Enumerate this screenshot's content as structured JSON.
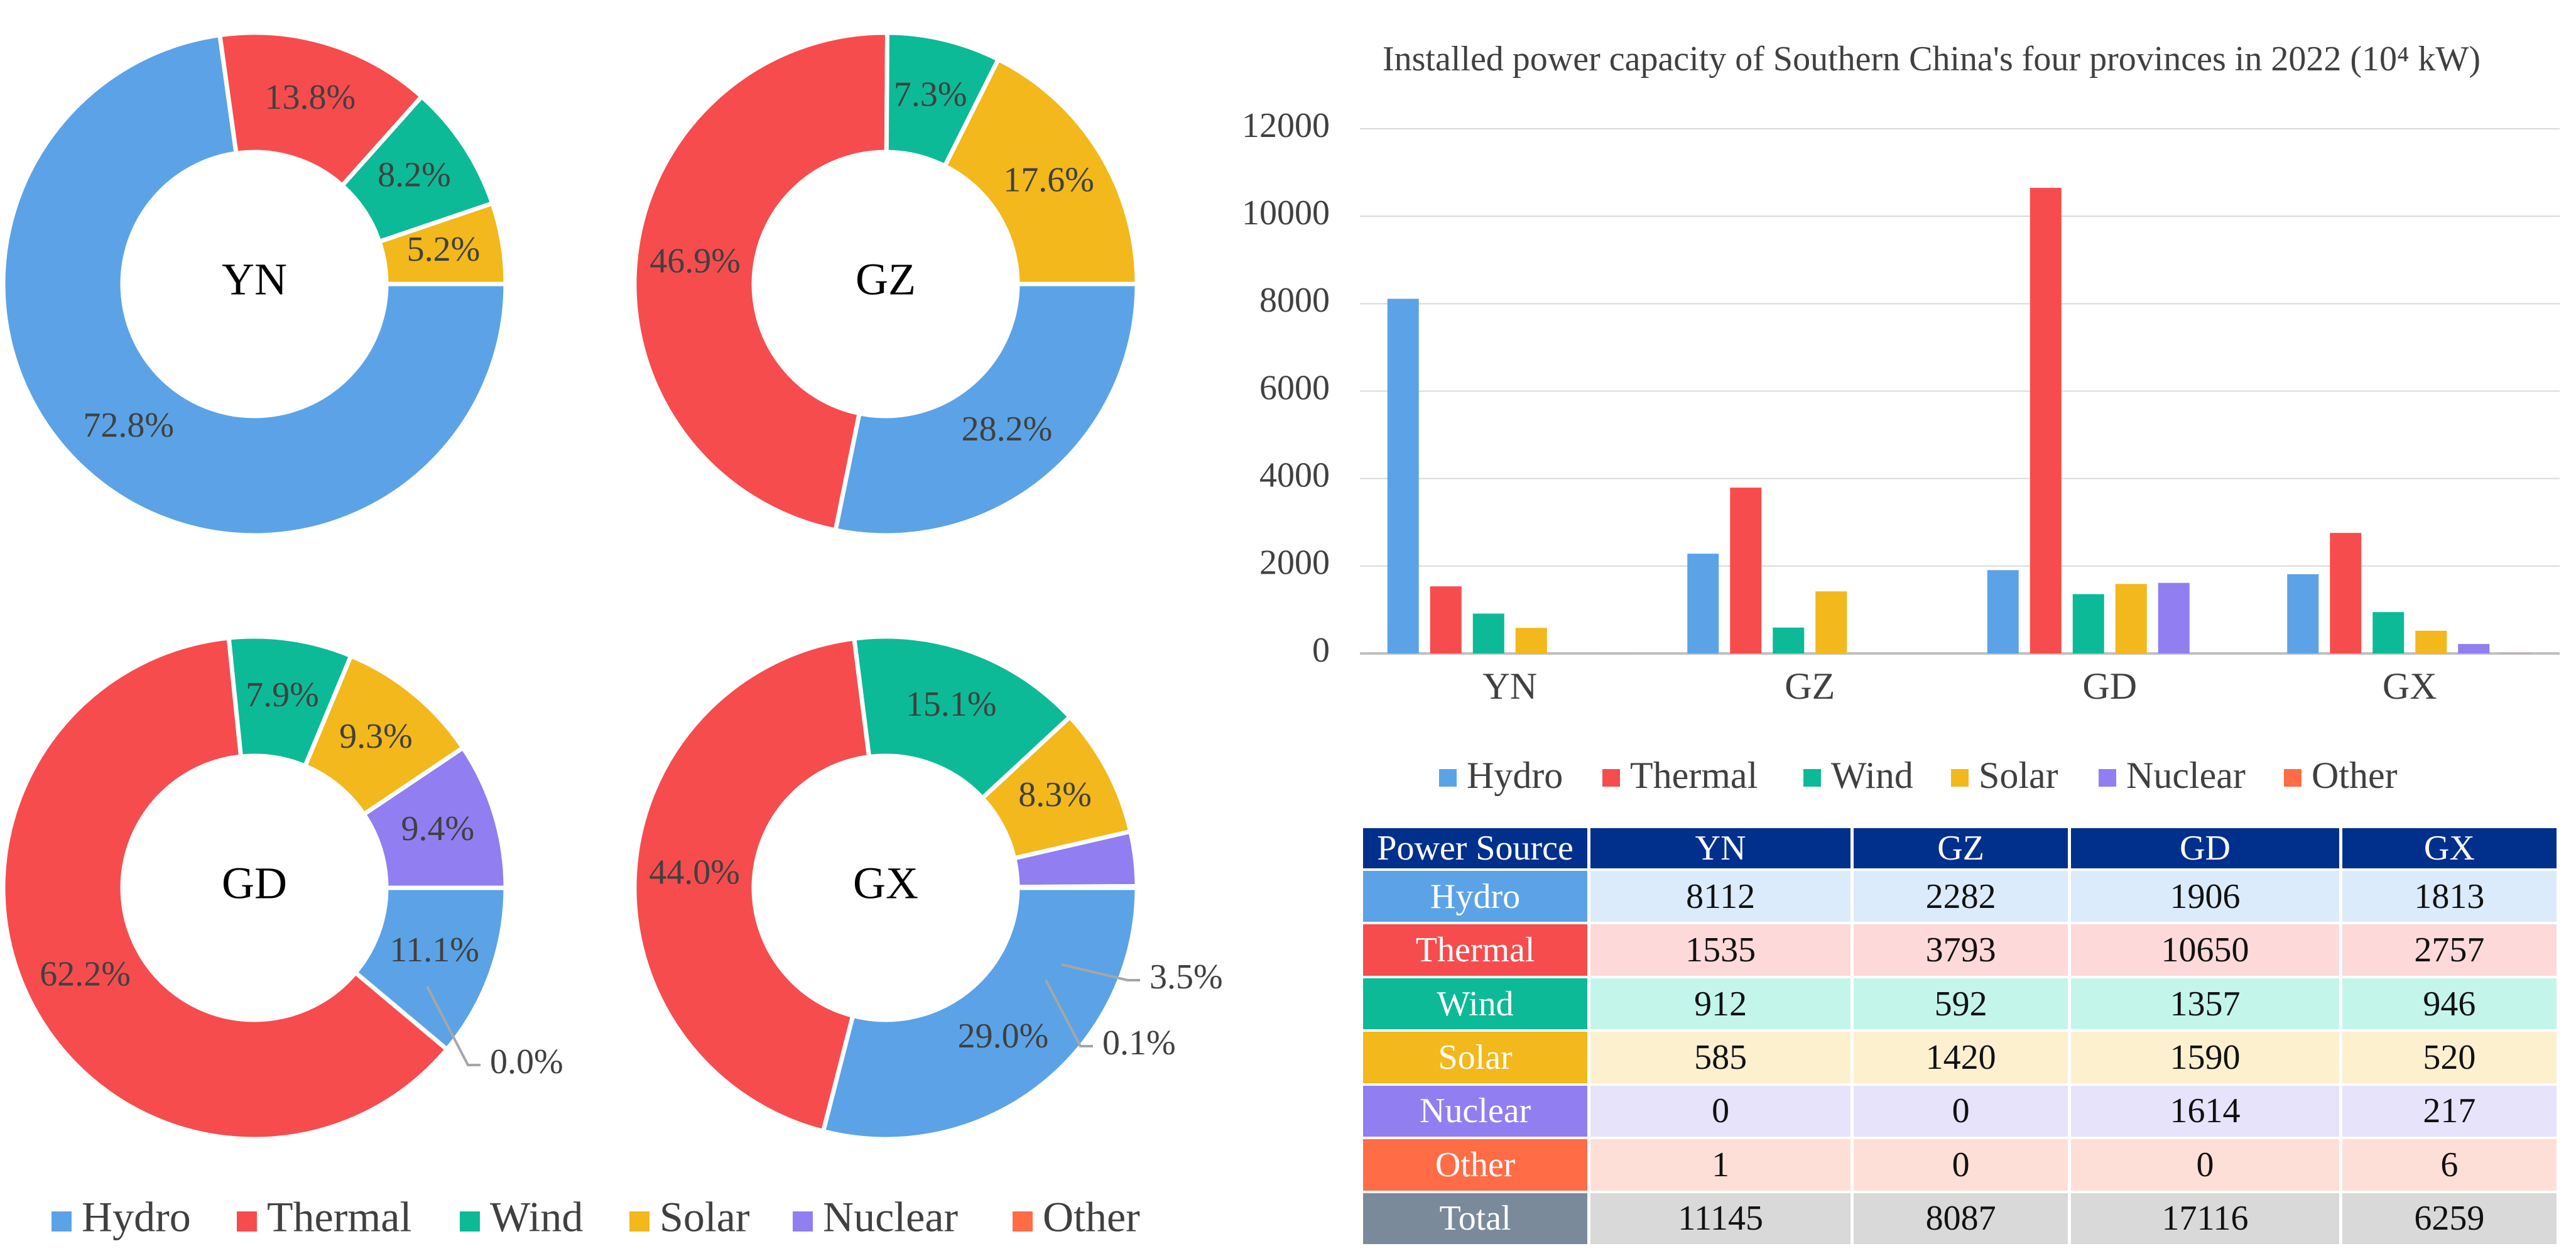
{
  "colors": {
    "Hydro": "#5ba3e6",
    "Thermal": "#f64c4e",
    "Wind": "#0cba97",
    "Solar": "#f2b81c",
    "Nuclear": "#917ef1",
    "Other": "#ff6c46",
    "Total": "#7a8a9a",
    "header": "#00308c",
    "cell_tints": {
      "Hydro": "#dcebfb",
      "Thermal": "#fdd9d9",
      "Wind": "#c3f5eb",
      "Solar": "#fdf0cf",
      "Nuclear": "#e6e3fb",
      "Other": "#fedfd7",
      "Total": "#d9d9d9"
    }
  },
  "chart_data": [
    {
      "type": "pie",
      "donut": true,
      "center_label": "YN",
      "slices": [
        {
          "name": "Hydro",
          "value": 72.8,
          "label": "72.8%"
        },
        {
          "name": "Thermal",
          "value": 13.8,
          "label": "13.8%"
        },
        {
          "name": "Wind",
          "value": 8.2,
          "label": "8.2%"
        },
        {
          "name": "Solar",
          "value": 5.2,
          "label": "5.2%"
        },
        {
          "name": "Nuclear",
          "value": 0,
          "label": ""
        },
        {
          "name": "Other",
          "value": 0,
          "label": ""
        }
      ]
    },
    {
      "type": "pie",
      "donut": true,
      "center_label": "GZ",
      "slices": [
        {
          "name": "Hydro",
          "value": 28.2,
          "label": "28.2%"
        },
        {
          "name": "Thermal",
          "value": 46.9,
          "label": "46.9%"
        },
        {
          "name": "Wind",
          "value": 7.3,
          "label": "7.3%"
        },
        {
          "name": "Solar",
          "value": 17.6,
          "label": "17.6%"
        },
        {
          "name": "Nuclear",
          "value": 0,
          "label": ""
        },
        {
          "name": "Other",
          "value": 0,
          "label": ""
        }
      ]
    },
    {
      "type": "pie",
      "donut": true,
      "center_label": "GD",
      "slices": [
        {
          "name": "Hydro",
          "value": 11.1,
          "label": "11.1%"
        },
        {
          "name": "Thermal",
          "value": 62.2,
          "label": "62.2%"
        },
        {
          "name": "Wind",
          "value": 7.9,
          "label": "7.9%"
        },
        {
          "name": "Solar",
          "value": 9.3,
          "label": "9.3%"
        },
        {
          "name": "Nuclear",
          "value": 9.4,
          "label": "9.4%"
        },
        {
          "name": "Other",
          "value": 0,
          "label": "0.0%"
        }
      ]
    },
    {
      "type": "pie",
      "donut": true,
      "center_label": "GX",
      "slices": [
        {
          "name": "Hydro",
          "value": 29.0,
          "label": "29.0%"
        },
        {
          "name": "Thermal",
          "value": 44.0,
          "label": "44.0%"
        },
        {
          "name": "Wind",
          "value": 15.1,
          "label": "15.1%"
        },
        {
          "name": "Solar",
          "value": 8.3,
          "label": "8.3%"
        },
        {
          "name": "Nuclear",
          "value": 3.5,
          "label": "3.5%"
        },
        {
          "name": "Other",
          "value": 0.1,
          "label": "0.1%"
        }
      ]
    },
    {
      "type": "bar",
      "title": "Installed power capacity of Southern China's four provinces in 2022 (10⁴ kW)",
      "categories": [
        "YN",
        "GZ",
        "GD",
        "GX"
      ],
      "ylim": [
        0,
        12000
      ],
      "yticks": [
        "0",
        "2000",
        "4000",
        "6000",
        "8000",
        "10000",
        "12000"
      ],
      "grid": true,
      "legend_position": "bottom",
      "series": [
        {
          "name": "Hydro",
          "values": [
            8112,
            2282,
            1906,
            1813
          ]
        },
        {
          "name": "Thermal",
          "values": [
            1535,
            3793,
            10650,
            2757
          ]
        },
        {
          "name": "Wind",
          "values": [
            912,
            592,
            1357,
            946
          ]
        },
        {
          "name": "Solar",
          "values": [
            585,
            1420,
            1590,
            520
          ]
        },
        {
          "name": "Nuclear",
          "values": [
            0,
            0,
            1614,
            217
          ]
        },
        {
          "name": "Other",
          "values": [
            1,
            0,
            0,
            6
          ]
        }
      ]
    },
    {
      "type": "table",
      "header": [
        "Power Source",
        "YN",
        "GZ",
        "GD",
        "GX"
      ],
      "rows": [
        {
          "name": "Hydro",
          "values": [
            "8112",
            "2282",
            "1906",
            "1813"
          ]
        },
        {
          "name": "Thermal",
          "values": [
            "1535",
            "3793",
            "10650",
            "2757"
          ]
        },
        {
          "name": "Wind",
          "values": [
            "912",
            "592",
            "1357",
            "946"
          ]
        },
        {
          "name": "Solar",
          "values": [
            "585",
            "1420",
            "1590",
            "520"
          ]
        },
        {
          "name": "Nuclear",
          "values": [
            "0",
            "0",
            "1614",
            "217"
          ]
        },
        {
          "name": "Other",
          "values": [
            "1",
            "0",
            "0",
            "6"
          ]
        },
        {
          "name": "Total",
          "values": [
            "11145",
            "8087",
            "17116",
            "6259"
          ]
        }
      ]
    }
  ],
  "legend": [
    "Hydro",
    "Thermal",
    "Wind",
    "Solar",
    "Nuclear",
    "Other"
  ]
}
